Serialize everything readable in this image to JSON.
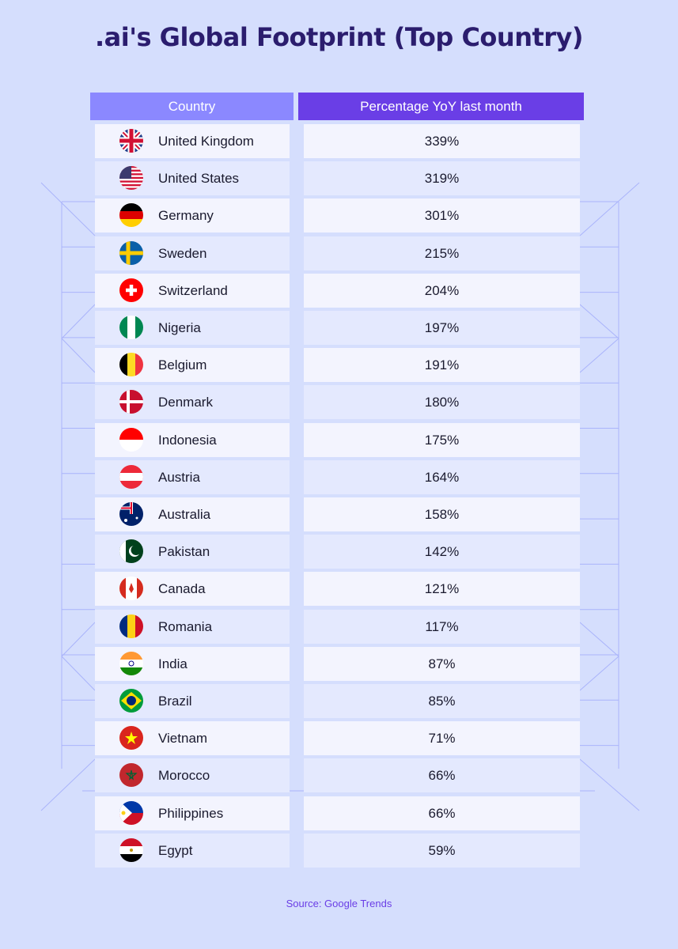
{
  "title": ".ai's Global Footprint (Top Country)",
  "source": "Source: Google Trends",
  "colors": {
    "background": "#d5defd",
    "header_country": "#8b88ff",
    "header_pct": "#6a3ee6",
    "title": "#2b1d6e"
  },
  "chart_data": {
    "type": "table",
    "title": ".ai's Global Footprint (Top Country)",
    "columns": [
      "Country",
      "Percentage YoY last month"
    ],
    "rows": [
      {
        "country": "United Kingdom",
        "value": "339%",
        "icon": "uk-flag-icon"
      },
      {
        "country": "United States",
        "value": "319%",
        "icon": "us-flag-icon"
      },
      {
        "country": "Germany",
        "value": "301%",
        "icon": "germany-flag-icon"
      },
      {
        "country": "Sweden",
        "value": "215%",
        "icon": "sweden-flag-icon"
      },
      {
        "country": "Switzerland",
        "value": "204%",
        "icon": "switzerland-flag-icon"
      },
      {
        "country": "Nigeria",
        "value": "197%",
        "icon": "nigeria-flag-icon"
      },
      {
        "country": "Belgium",
        "value": "191%",
        "icon": "belgium-flag-icon"
      },
      {
        "country": "Denmark",
        "value": "180%",
        "icon": "denmark-flag-icon"
      },
      {
        "country": "Indonesia",
        "value": "175%",
        "icon": "indonesia-flag-icon"
      },
      {
        "country": "Austria",
        "value": "164%",
        "icon": "austria-flag-icon"
      },
      {
        "country": "Australia",
        "value": "158%",
        "icon": "australia-flag-icon"
      },
      {
        "country": "Pakistan",
        "value": "142%",
        "icon": "pakistan-flag-icon"
      },
      {
        "country": "Canada",
        "value": "121%",
        "icon": "canada-flag-icon"
      },
      {
        "country": "Romania",
        "value": "117%",
        "icon": "romania-flag-icon"
      },
      {
        "country": "India",
        "value": "87%",
        "icon": "india-flag-icon"
      },
      {
        "country": "Brazil",
        "value": "85%",
        "icon": "brazil-flag-icon"
      },
      {
        "country": "Vietnam",
        "value": "71%",
        "icon": "vietnam-flag-icon"
      },
      {
        "country": "Morocco",
        "value": "66%",
        "icon": "morocco-flag-icon"
      },
      {
        "country": "Philippines",
        "value": "66%",
        "icon": "philippines-flag-icon"
      },
      {
        "country": "Egypt",
        "value": "59%",
        "icon": "egypt-flag-icon"
      }
    ]
  }
}
